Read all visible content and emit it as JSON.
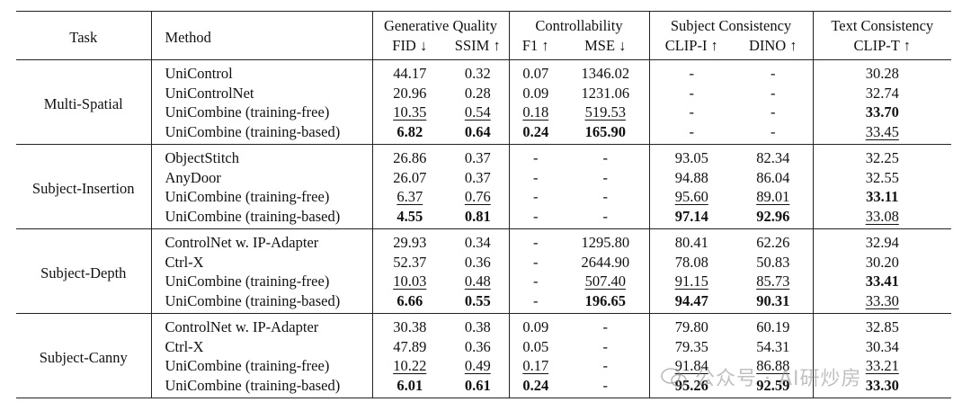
{
  "headers": {
    "task": "Task",
    "method": "Method",
    "groups": [
      "Generative Quality",
      "Controllability",
      "Subject Consistency",
      "Text Consistency"
    ],
    "metrics": [
      "FID ↓",
      "SSIM ↑",
      "F1 ↑",
      "MSE ↓",
      "CLIP-I ↑",
      "DINO ↑",
      "CLIP-T ↑"
    ]
  },
  "groups": [
    {
      "task": "Multi-Spatial",
      "rows": [
        {
          "method": "UniControl",
          "cells": [
            [
              "44.17",
              ""
            ],
            [
              "0.32",
              ""
            ],
            [
              "0.07",
              ""
            ],
            [
              "1346.02",
              ""
            ],
            [
              "-",
              ""
            ],
            [
              "-",
              ""
            ],
            [
              "30.28",
              ""
            ]
          ]
        },
        {
          "method": "UniControlNet",
          "cells": [
            [
              "20.96",
              ""
            ],
            [
              "0.28",
              ""
            ],
            [
              "0.09",
              ""
            ],
            [
              "1231.06",
              ""
            ],
            [
              "-",
              ""
            ],
            [
              "-",
              ""
            ],
            [
              "32.74",
              ""
            ]
          ]
        },
        {
          "method": "UniCombine (training-free)",
          "cells": [
            [
              "10.35",
              "second"
            ],
            [
              "0.54",
              "second"
            ],
            [
              "0.18",
              "second"
            ],
            [
              "519.53",
              "second"
            ],
            [
              "-",
              ""
            ],
            [
              "-",
              ""
            ],
            [
              "33.70",
              "best"
            ]
          ]
        },
        {
          "method": "UniCombine (training-based)",
          "cells": [
            [
              "6.82",
              "best"
            ],
            [
              "0.64",
              "best"
            ],
            [
              "0.24",
              "best"
            ],
            [
              "165.90",
              "best"
            ],
            [
              "-",
              ""
            ],
            [
              "-",
              ""
            ],
            [
              "33.45",
              "second"
            ]
          ]
        }
      ]
    },
    {
      "task": "Subject-Insertion",
      "rows": [
        {
          "method": "ObjectStitch",
          "cells": [
            [
              "26.86",
              ""
            ],
            [
              "0.37",
              ""
            ],
            [
              "-",
              ""
            ],
            [
              "-",
              ""
            ],
            [
              "93.05",
              ""
            ],
            [
              "82.34",
              ""
            ],
            [
              "32.25",
              ""
            ]
          ]
        },
        {
          "method": "AnyDoor",
          "cells": [
            [
              "26.07",
              ""
            ],
            [
              "0.37",
              ""
            ],
            [
              "-",
              ""
            ],
            [
              "-",
              ""
            ],
            [
              "94.88",
              ""
            ],
            [
              "86.04",
              ""
            ],
            [
              "32.55",
              ""
            ]
          ]
        },
        {
          "method": "UniCombine (training-free)",
          "cells": [
            [
              "6.37",
              "second"
            ],
            [
              "0.76",
              "second"
            ],
            [
              "-",
              ""
            ],
            [
              "-",
              ""
            ],
            [
              "95.60",
              "second"
            ],
            [
              "89.01",
              "second"
            ],
            [
              "33.11",
              "best"
            ]
          ]
        },
        {
          "method": "UniCombine (training-based)",
          "cells": [
            [
              "4.55",
              "best"
            ],
            [
              "0.81",
              "best"
            ],
            [
              "-",
              ""
            ],
            [
              "-",
              ""
            ],
            [
              "97.14",
              "best"
            ],
            [
              "92.96",
              "best"
            ],
            [
              "33.08",
              "second"
            ]
          ]
        }
      ]
    },
    {
      "task": "Subject-Depth",
      "rows": [
        {
          "method": "ControlNet w. IP-Adapter",
          "cells": [
            [
              "29.93",
              ""
            ],
            [
              "0.34",
              ""
            ],
            [
              "-",
              ""
            ],
            [
              "1295.80",
              ""
            ],
            [
              "80.41",
              ""
            ],
            [
              "62.26",
              ""
            ],
            [
              "32.94",
              ""
            ]
          ]
        },
        {
          "method": "Ctrl-X",
          "cells": [
            [
              "52.37",
              ""
            ],
            [
              "0.36",
              ""
            ],
            [
              "-",
              ""
            ],
            [
              "2644.90",
              ""
            ],
            [
              "78.08",
              ""
            ],
            [
              "50.83",
              ""
            ],
            [
              "30.20",
              ""
            ]
          ]
        },
        {
          "method": "UniCombine (training-free)",
          "cells": [
            [
              "10.03",
              "second"
            ],
            [
              "0.48",
              "second"
            ],
            [
              "-",
              ""
            ],
            [
              "507.40",
              "second"
            ],
            [
              "91.15",
              "second"
            ],
            [
              "85.73",
              "second"
            ],
            [
              "33.41",
              "best"
            ]
          ]
        },
        {
          "method": "UniCombine (training-based)",
          "cells": [
            [
              "6.66",
              "best"
            ],
            [
              "0.55",
              "best"
            ],
            [
              "-",
              ""
            ],
            [
              "196.65",
              "best"
            ],
            [
              "94.47",
              "best"
            ],
            [
              "90.31",
              "best"
            ],
            [
              "33.30",
              "second"
            ]
          ]
        }
      ]
    },
    {
      "task": "Subject-Canny",
      "rows": [
        {
          "method": "ControlNet w. IP-Adapter",
          "cells": [
            [
              "30.38",
              ""
            ],
            [
              "0.38",
              ""
            ],
            [
              "0.09",
              ""
            ],
            [
              "-",
              ""
            ],
            [
              "79.80",
              ""
            ],
            [
              "60.19",
              ""
            ],
            [
              "32.85",
              ""
            ]
          ]
        },
        {
          "method": "Ctrl-X",
          "cells": [
            [
              "47.89",
              ""
            ],
            [
              "0.36",
              ""
            ],
            [
              "0.05",
              ""
            ],
            [
              "-",
              ""
            ],
            [
              "79.35",
              ""
            ],
            [
              "54.31",
              ""
            ],
            [
              "30.34",
              ""
            ]
          ]
        },
        {
          "method": "UniCombine (training-free)",
          "cells": [
            [
              "10.22",
              "second"
            ],
            [
              "0.49",
              "second"
            ],
            [
              "0.17",
              "second"
            ],
            [
              "-",
              ""
            ],
            [
              "91.84",
              "second"
            ],
            [
              "86.88",
              "second"
            ],
            [
              "33.21",
              "second"
            ]
          ]
        },
        {
          "method": "UniCombine (training-based)",
          "cells": [
            [
              "6.01",
              "best"
            ],
            [
              "0.61",
              "best"
            ],
            [
              "0.24",
              "best"
            ],
            [
              "-",
              ""
            ],
            [
              "95.26",
              "best"
            ],
            [
              "92.59",
              "best"
            ],
            [
              "33.30",
              "best"
            ]
          ]
        }
      ]
    }
  ],
  "watermark": "公众号 · AI研炒房"
}
